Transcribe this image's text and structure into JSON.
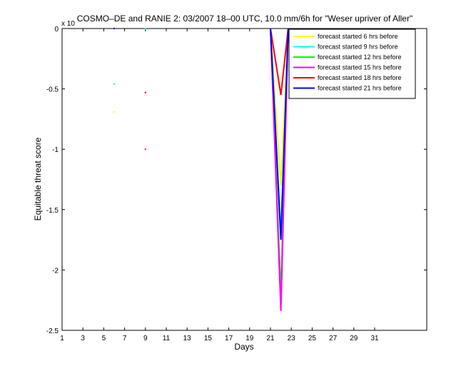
{
  "chart_data": {
    "type": "line",
    "title": "COSMO–DE and RANIE 2: 03/2007 18–00 UTC, 10.0 mm/6h for \"Weser upriver of Aller\"",
    "xlabel": "Days",
    "ylabel": "Equitable threat score",
    "y_exponent_label": "x 10",
    "xlim": [
      1,
      36
    ],
    "ylim": [
      -2.5,
      0
    ],
    "x_ticks": [
      1,
      3,
      5,
      7,
      9,
      11,
      13,
      15,
      17,
      19,
      21,
      23,
      25,
      27,
      29,
      31
    ],
    "y_ticks": [
      0,
      -0.5,
      -1,
      -1.5,
      -2,
      -2.5
    ],
    "x_tick_labels": [
      "1",
      "3",
      "5",
      "7",
      "9",
      "11",
      "13",
      "15",
      "17",
      "19",
      "21",
      "23",
      "25",
      "27",
      "29",
      "31"
    ],
    "y_tick_labels": [
      "0",
      "-0.5",
      "-1",
      "-1.5",
      "-2",
      "-2.5"
    ],
    "legend_position": "top-right",
    "grid": false,
    "series": [
      {
        "name": "forecast started 6 hrs before",
        "color": "#ffff00",
        "points": [
          [
            6,
            0
          ],
          [
            6,
            -0.69
          ]
        ],
        "line": [
          [
            21,
            0
          ],
          [
            22,
            -1.3
          ],
          [
            22.7,
            0
          ]
        ]
      },
      {
        "name": "forecast started 9 hrs before",
        "color": "#00ffff",
        "points": [
          [
            6,
            -0.46
          ],
          [
            9,
            0
          ]
        ],
        "line": [
          [
            21,
            0
          ],
          [
            22,
            -1.7
          ],
          [
            22.7,
            0
          ]
        ]
      },
      {
        "name": "forecast started 12 hrs before",
        "color": "#00ff00",
        "points": [],
        "line": [
          [
            21,
            0
          ],
          [
            22,
            -2.2
          ],
          [
            22.7,
            0
          ]
        ]
      },
      {
        "name": "forecast started 15 hrs before",
        "color": "#ff00ff",
        "points": [
          [
            9,
            -1.0
          ]
        ],
        "line": [
          [
            21,
            0
          ],
          [
            22,
            -2.34
          ],
          [
            22.7,
            0
          ]
        ]
      },
      {
        "name": "forecast started 18 hrs before",
        "color": "#ff0000",
        "points": [
          [
            9,
            -0.53
          ]
        ],
        "line": [
          [
            21,
            0
          ],
          [
            22,
            -0.55
          ],
          [
            22.7,
            0
          ]
        ]
      },
      {
        "name": "forecast started 21 hrs before",
        "color": "#0000ff",
        "points": [
          [
            6,
            0
          ]
        ],
        "line": [
          [
            21,
            0
          ],
          [
            22,
            -1.75
          ],
          [
            22.7,
            0
          ]
        ]
      }
    ]
  }
}
